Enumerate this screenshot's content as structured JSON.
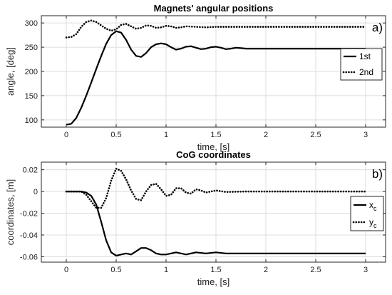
{
  "chart_data": [
    {
      "type": "line",
      "title": "Magnets' angular positions",
      "xlabel": "time, [s]",
      "ylabel": "angle, [deg]",
      "panel_tag": "a)",
      "xlim": [
        -0.25,
        3.2
      ],
      "ylim": [
        85,
        315
      ],
      "xticks": [
        0,
        0.5,
        1,
        1.5,
        2,
        2.5,
        3
      ],
      "yticks": [
        100,
        150,
        200,
        250,
        300
      ],
      "legend_position": "right",
      "grid": true,
      "series": [
        {
          "name": "1st",
          "style": "solid",
          "color": "#000000",
          "x": [
            0,
            0.05,
            0.1,
            0.15,
            0.2,
            0.25,
            0.3,
            0.35,
            0.4,
            0.45,
            0.5,
            0.55,
            0.6,
            0.65,
            0.7,
            0.75,
            0.8,
            0.85,
            0.9,
            0.95,
            1.0,
            1.05,
            1.1,
            1.15,
            1.2,
            1.25,
            1.3,
            1.35,
            1.4,
            1.45,
            1.5,
            1.55,
            1.6,
            1.65,
            1.7,
            1.75,
            1.8,
            1.9,
            2.0,
            2.2,
            2.5,
            2.8,
            3.0
          ],
          "y": [
            90,
            92,
            104,
            125,
            150,
            177,
            205,
            232,
            257,
            275,
            283,
            280,
            265,
            245,
            232,
            230,
            238,
            250,
            256,
            258,
            256,
            250,
            245,
            247,
            251,
            252,
            249,
            246,
            247,
            250,
            251,
            249,
            246,
            247,
            249,
            248,
            247,
            247,
            247,
            247,
            247,
            247,
            247
          ]
        },
        {
          "name": "2nd",
          "style": "dotted",
          "color": "#000000",
          "x": [
            0,
            0.05,
            0.1,
            0.15,
            0.2,
            0.25,
            0.3,
            0.35,
            0.4,
            0.45,
            0.5,
            0.55,
            0.6,
            0.65,
            0.7,
            0.75,
            0.8,
            0.85,
            0.9,
            0.95,
            1.0,
            1.05,
            1.1,
            1.15,
            1.2,
            1.3,
            1.4,
            1.5,
            1.6,
            1.8,
            2.0,
            2.5,
            3.0
          ],
          "y": [
            270,
            271,
            277,
            292,
            302,
            305,
            302,
            295,
            288,
            284,
            287,
            296,
            298,
            293,
            288,
            290,
            295,
            294,
            290,
            291,
            294,
            293,
            290,
            291,
            293,
            292,
            291,
            292,
            292,
            292,
            292,
            292,
            292
          ]
        }
      ]
    },
    {
      "type": "line",
      "title": "CoG coordinates",
      "xlabel": "time, [s]",
      "ylabel": "coordinates, [m]",
      "panel_tag": "b)",
      "xlim": [
        -0.25,
        3.2
      ],
      "ylim": [
        -0.065,
        0.027
      ],
      "xticks": [
        0,
        0.5,
        1,
        1.5,
        2,
        2.5,
        3
      ],
      "yticks": [
        -0.06,
        -0.04,
        -0.02,
        0,
        0.02
      ],
      "ytick_labels": [
        "-0.06",
        "-0.04",
        "-0.02",
        "0",
        "0.02"
      ],
      "legend_position": "right",
      "grid": true,
      "series": [
        {
          "name": "x",
          "name_subscript": "c",
          "style": "solid",
          "color": "#000000",
          "x": [
            0,
            0.15,
            0.2,
            0.25,
            0.3,
            0.35,
            0.4,
            0.45,
            0.5,
            0.55,
            0.6,
            0.65,
            0.7,
            0.75,
            0.8,
            0.85,
            0.9,
            0.95,
            1.0,
            1.05,
            1.1,
            1.15,
            1.2,
            1.3,
            1.4,
            1.5,
            1.6,
            1.8,
            2.0,
            2.5,
            3.0
          ],
          "y": [
            0,
            0,
            -0.001,
            -0.004,
            -0.012,
            -0.028,
            -0.045,
            -0.056,
            -0.059,
            -0.058,
            -0.057,
            -0.058,
            -0.055,
            -0.052,
            -0.052,
            -0.054,
            -0.057,
            -0.058,
            -0.058,
            -0.057,
            -0.056,
            -0.057,
            -0.058,
            -0.056,
            -0.057,
            -0.056,
            -0.057,
            -0.057,
            -0.057,
            -0.057,
            -0.057
          ]
        },
        {
          "name": "y",
          "name_subscript": "c",
          "style": "dotted",
          "color": "#000000",
          "x": [
            0,
            0.15,
            0.2,
            0.25,
            0.3,
            0.35,
            0.4,
            0.45,
            0.5,
            0.55,
            0.6,
            0.65,
            0.7,
            0.75,
            0.8,
            0.85,
            0.9,
            0.95,
            1.0,
            1.05,
            1.1,
            1.15,
            1.2,
            1.25,
            1.3,
            1.35,
            1.4,
            1.5,
            1.6,
            1.8,
            2.0,
            2.5,
            3.0
          ],
          "y": [
            0,
            0,
            -0.003,
            -0.009,
            -0.015,
            -0.015,
            -0.006,
            0.01,
            0.021,
            0.019,
            0.011,
            0.001,
            -0.007,
            -0.008,
            0.0,
            0.006,
            0.007,
            0.002,
            -0.004,
            -0.003,
            0.003,
            0.003,
            -0.001,
            -0.002,
            0.002,
            0.001,
            -0.001,
            0.001,
            -0.0005,
            0,
            0,
            0,
            0
          ]
        }
      ]
    }
  ]
}
